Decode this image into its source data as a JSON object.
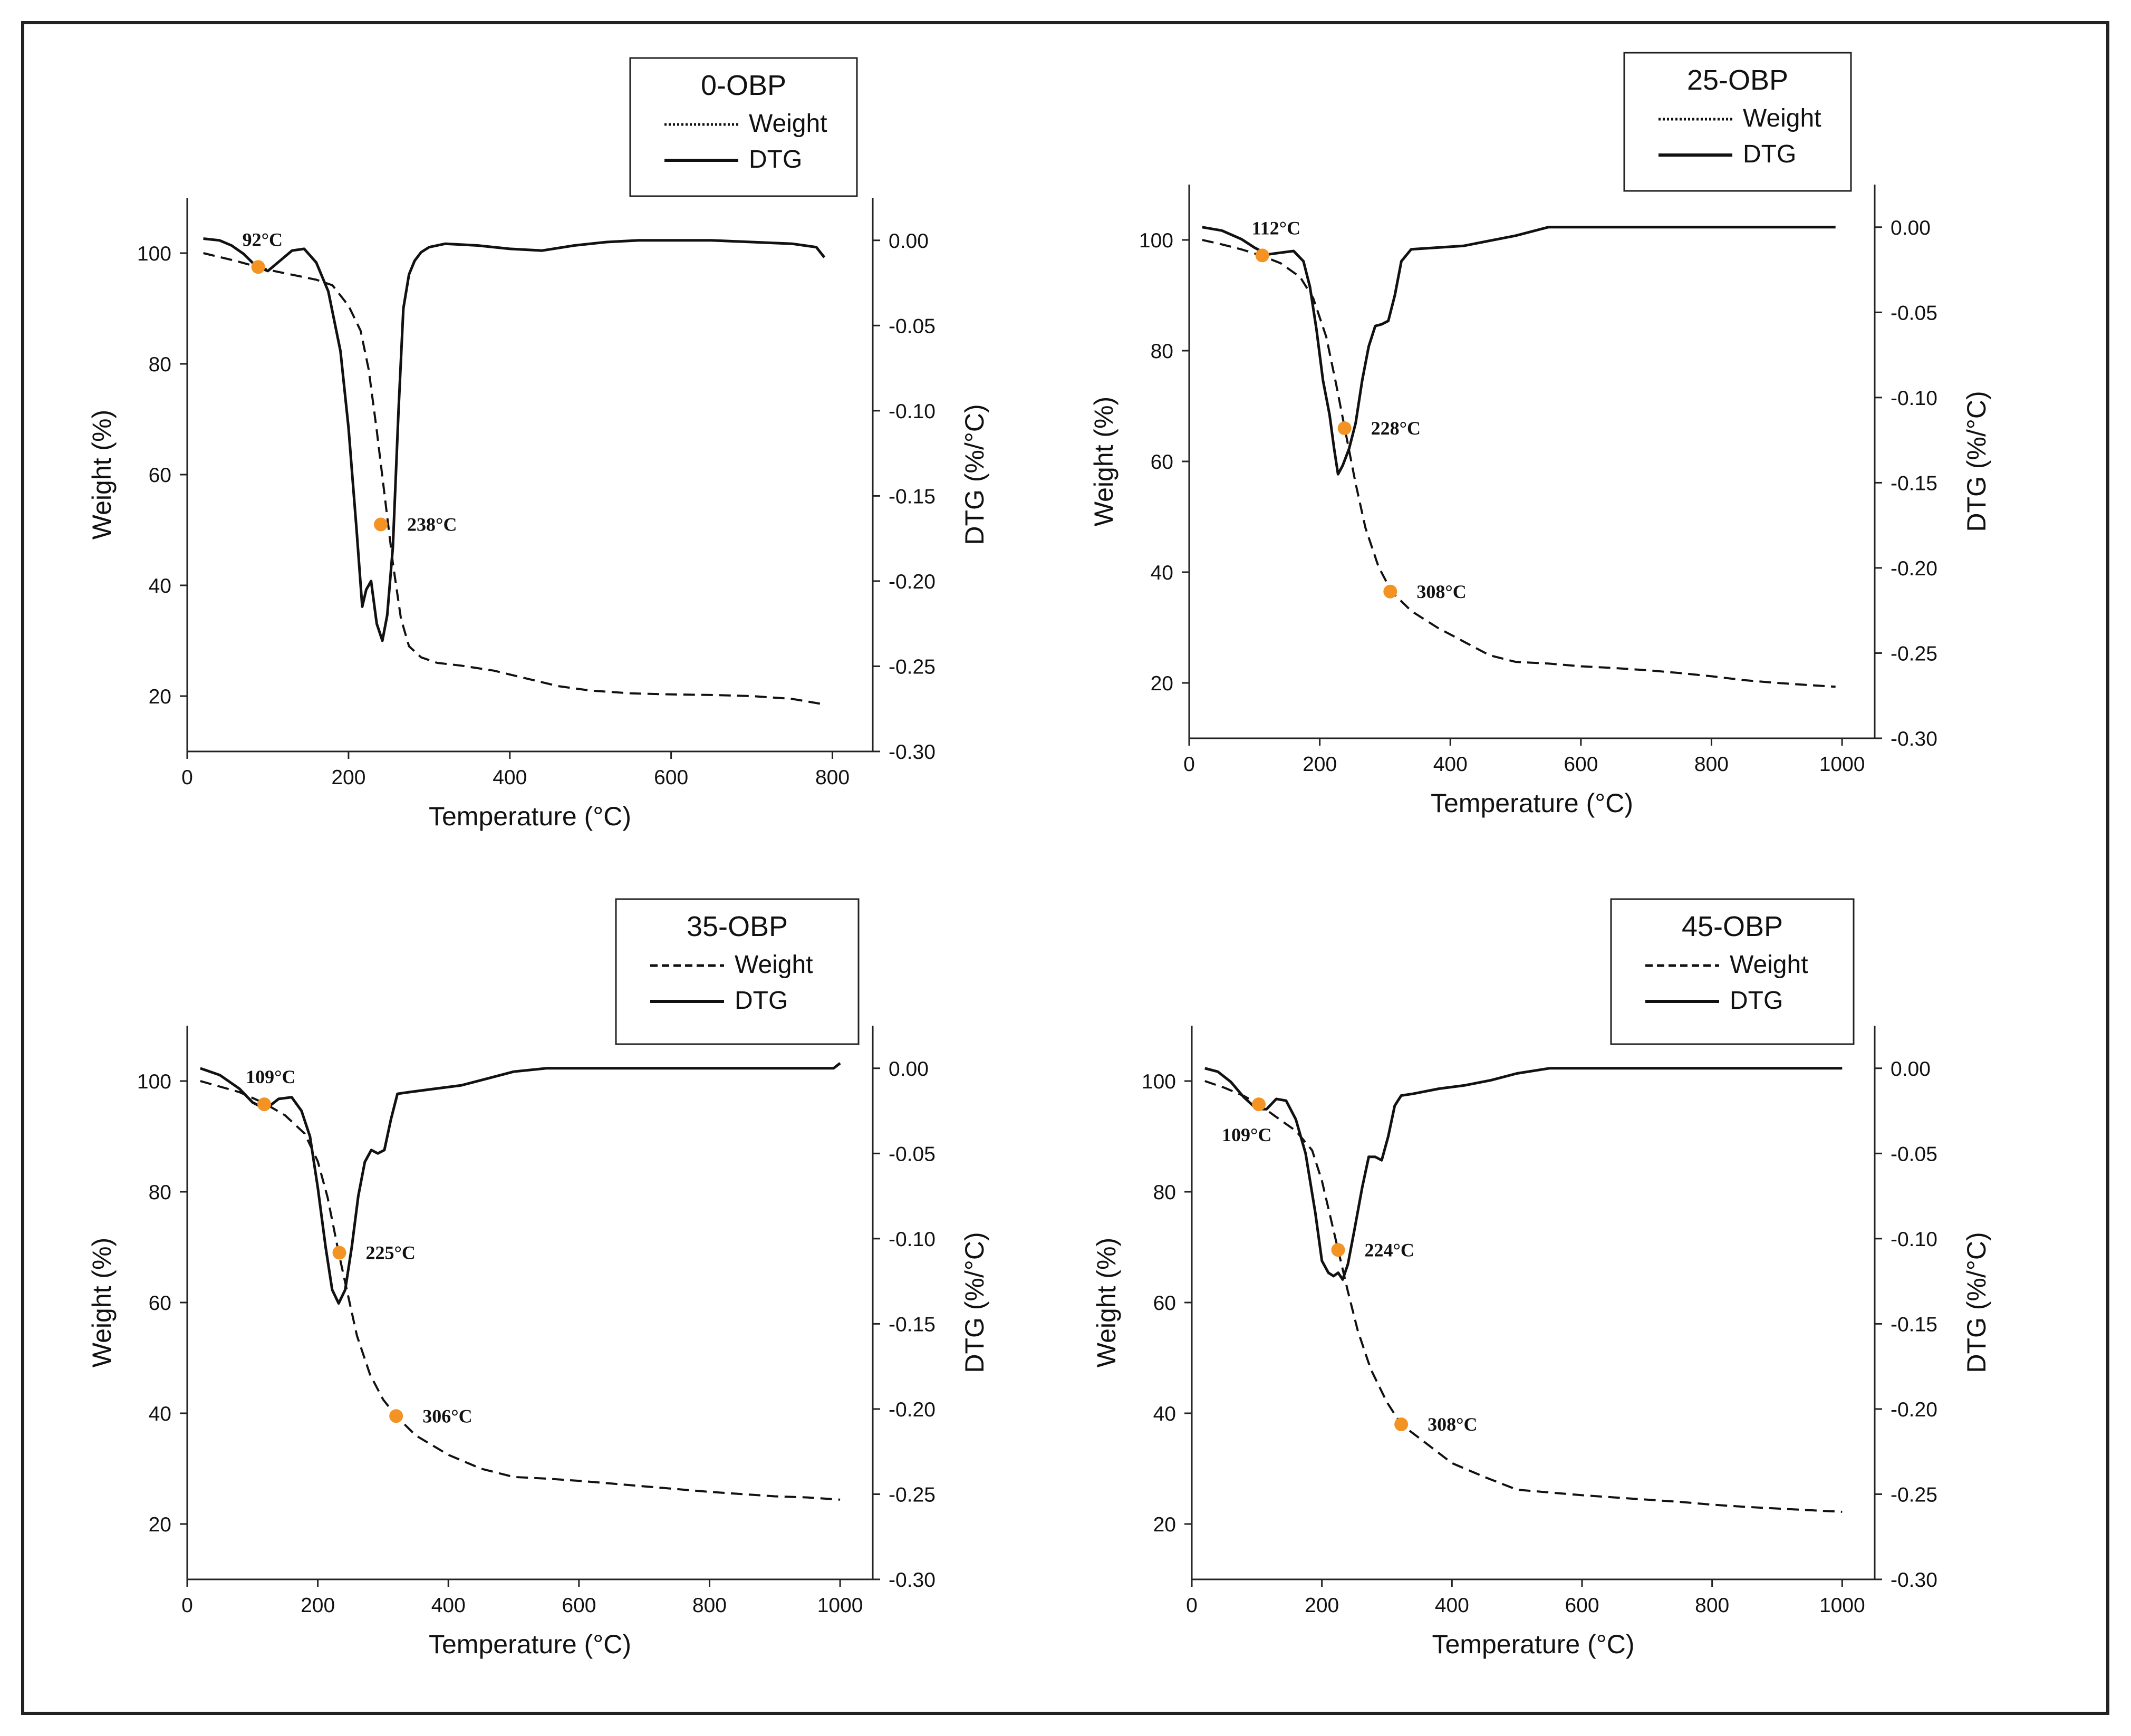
{
  "chart_data": [
    {
      "type": "line",
      "title": "0-OBP",
      "xlabel": "Temperature (°C)",
      "ylabel": "Weight (%)",
      "y2label": "DTG (%/°C)",
      "xlim": [
        0,
        850
      ],
      "xticks": [
        0,
        200,
        400,
        600,
        800
      ],
      "ylim": [
        10,
        110
      ],
      "yticks": [
        20,
        40,
        60,
        80,
        100
      ],
      "y2lim": [
        -0.3,
        0.025
      ],
      "y2ticks": [
        0.0,
        -0.05,
        -0.1,
        -0.15,
        -0.2,
        -0.25,
        -0.3
      ],
      "y2tick_labels": [
        "0.00",
        "-0.05",
        "-0.10",
        "-0.15",
        "-0.20",
        "-0.25",
        "-0.30"
      ],
      "legend_position": "top-right",
      "series": [
        {
          "name": "Weight",
          "axis": "left",
          "style": "dashed",
          "x": [
            20,
            40,
            60,
            80,
            100,
            120,
            140,
            160,
            180,
            200,
            215,
            225,
            235,
            245,
            255,
            265,
            275,
            290,
            310,
            340,
            380,
            420,
            460,
            500,
            550,
            600,
            650,
            700,
            750,
            790
          ],
          "y": [
            100,
            99.3,
            98.6,
            97.8,
            97,
            96.4,
            95.8,
            95.2,
            94.2,
            90.5,
            86,
            79,
            68,
            56,
            44,
            34,
            29,
            27,
            26,
            25.5,
            24.6,
            23.2,
            21.8,
            21,
            20.5,
            20.3,
            20.2,
            20,
            19.5,
            18.5
          ]
        },
        {
          "name": "DTG",
          "axis": "right",
          "style": "solid",
          "x": [
            20,
            40,
            55,
            70,
            85,
            100,
            115,
            130,
            145,
            160,
            175,
            190,
            200,
            210,
            217,
            222,
            228,
            235,
            242,
            248,
            255,
            262,
            268,
            275,
            282,
            290,
            300,
            320,
            360,
            400,
            440,
            480,
            520,
            560,
            600,
            650,
            700,
            750,
            780,
            790
          ],
          "y": [
            0.001,
            0.0,
            -0.003,
            -0.008,
            -0.015,
            -0.018,
            -0.012,
            -0.006,
            -0.005,
            -0.013,
            -0.03,
            -0.065,
            -0.11,
            -0.17,
            -0.215,
            -0.205,
            -0.2,
            -0.225,
            -0.235,
            -0.22,
            -0.18,
            -0.1,
            -0.04,
            -0.02,
            -0.012,
            -0.007,
            -0.004,
            -0.002,
            -0.003,
            -0.005,
            -0.006,
            -0.003,
            -0.001,
            0.0,
            0.0,
            0.0,
            -0.001,
            -0.002,
            -0.004,
            -0.01
          ]
        }
      ],
      "markers": [
        {
          "x": 88,
          "y": 97.5,
          "label": "92°C"
        },
        {
          "x": 240,
          "y": 51,
          "label": "238°C"
        }
      ]
    },
    {
      "type": "line",
      "title": "25-OBP",
      "xlabel": "Temperature (°C)",
      "ylabel": "Weight (%)",
      "y2label": "DTG (%/°C)",
      "xlim": [
        0,
        1050
      ],
      "xticks": [
        0,
        200,
        400,
        600,
        800,
        1000
      ],
      "ylim": [
        10,
        110
      ],
      "yticks": [
        20,
        40,
        60,
        80,
        100
      ],
      "y2lim": [
        -0.3,
        0.025
      ],
      "y2ticks": [
        0.0,
        -0.05,
        -0.1,
        -0.15,
        -0.2,
        -0.25,
        -0.3
      ],
      "y2tick_labels": [
        "0.00",
        "-0.05",
        "-0.10",
        "-0.15",
        "-0.20",
        "-0.25",
        "-0.30"
      ],
      "legend_position": "top-right",
      "series": [
        {
          "name": "Weight",
          "axis": "left",
          "style": "dashed",
          "x": [
            20,
            50,
            80,
            110,
            140,
            170,
            190,
            210,
            225,
            240,
            255,
            270,
            290,
            310,
            340,
            380,
            420,
            460,
            500,
            550,
            600,
            650,
            700,
            750,
            800,
            850,
            900,
            950,
            990
          ],
          "y": [
            100,
            99.2,
            98.3,
            97.2,
            95.8,
            93.3,
            89.5,
            82.5,
            74,
            65,
            56,
            48,
            41,
            36.5,
            33,
            30,
            27.5,
            25,
            23.8,
            23.5,
            23,
            22.7,
            22.3,
            21.8,
            21.2,
            20.5,
            20,
            19.6,
            19.3
          ]
        },
        {
          "name": "DTG",
          "axis": "right",
          "style": "solid",
          "x": [
            20,
            50,
            80,
            100,
            120,
            140,
            160,
            175,
            185,
            195,
            205,
            215,
            222,
            228,
            235,
            245,
            255,
            265,
            275,
            285,
            295,
            305,
            315,
            325,
            340,
            380,
            420,
            460,
            500,
            550,
            600,
            650,
            700,
            750,
            800,
            850,
            900,
            950,
            990
          ],
          "y": [
            0.0,
            -0.002,
            -0.007,
            -0.012,
            -0.016,
            -0.015,
            -0.014,
            -0.02,
            -0.035,
            -0.06,
            -0.09,
            -0.11,
            -0.13,
            -0.145,
            -0.14,
            -0.13,
            -0.115,
            -0.09,
            -0.07,
            -0.058,
            -0.057,
            -0.055,
            -0.04,
            -0.02,
            -0.013,
            -0.012,
            -0.011,
            -0.008,
            -0.005,
            0.0,
            0.0,
            0.0,
            0.0,
            0.0,
            0.0,
            0.0,
            0.0,
            0.0,
            0.0
          ]
        }
      ],
      "markers": [
        {
          "x": 112,
          "y": 97.2,
          "label": "112°C"
        },
        {
          "x": 238,
          "y": 66,
          "label": "228°C"
        },
        {
          "x": 308,
          "y": 36.5,
          "label": "308°C"
        }
      ]
    },
    {
      "type": "line",
      "title": "35-OBP",
      "xlabel": "Temperature (°C)",
      "ylabel": "Weight (%)",
      "y2label": "DTG (%/°C)",
      "xlim": [
        0,
        1050
      ],
      "xticks": [
        0,
        200,
        400,
        600,
        800,
        1000
      ],
      "ylim": [
        10,
        110
      ],
      "yticks": [
        20,
        40,
        60,
        80,
        100
      ],
      "y2lim": [
        -0.3,
        0.025
      ],
      "y2ticks": [
        0.0,
        -0.05,
        -0.1,
        -0.15,
        -0.2,
        -0.25,
        -0.3
      ],
      "y2tick_labels": [
        "0.00",
        "-0.05",
        "-0.10",
        "-0.15",
        "-0.20",
        "-0.25",
        "-0.30"
      ],
      "legend_position": "top-right",
      "series": [
        {
          "name": "Weight",
          "axis": "left",
          "style": "dashed",
          "x": [
            20,
            50,
            80,
            118,
            150,
            180,
            200,
            215,
            232,
            245,
            260,
            280,
            300,
            320,
            350,
            400,
            450,
            500,
            550,
            600,
            650,
            700,
            750,
            800,
            850,
            900,
            950,
            1000
          ],
          "y": [
            100,
            99,
            98,
            96,
            93.8,
            90.5,
            85.5,
            79,
            69,
            62,
            54,
            47,
            42.5,
            39.5,
            36,
            32.5,
            30,
            28.5,
            28.2,
            27.8,
            27.3,
            26.8,
            26.3,
            25.8,
            25.4,
            25,
            24.8,
            24.4
          ]
        },
        {
          "name": "DTG",
          "axis": "right",
          "style": "solid",
          "x": [
            20,
            50,
            80,
            100,
            120,
            140,
            160,
            175,
            188,
            200,
            212,
            222,
            232,
            242,
            252,
            262,
            272,
            282,
            292,
            302,
            312,
            322,
            340,
            380,
            420,
            460,
            500,
            550,
            600,
            700,
            800,
            900,
            990,
            1000
          ],
          "y": [
            0.0,
            -0.004,
            -0.012,
            -0.02,
            -0.024,
            -0.018,
            -0.017,
            -0.025,
            -0.04,
            -0.07,
            -0.105,
            -0.13,
            -0.138,
            -0.13,
            -0.105,
            -0.075,
            -0.055,
            -0.048,
            -0.05,
            -0.048,
            -0.03,
            -0.015,
            -0.014,
            -0.012,
            -0.01,
            -0.006,
            -0.002,
            0.0,
            0.0,
            0.0,
            0.0,
            0.0,
            0.0,
            0.003
          ]
        }
      ],
      "markers": [
        {
          "x": 118,
          "y": 95.8,
          "label": "109°C"
        },
        {
          "x": 233,
          "y": 69,
          "label": "225°C"
        },
        {
          "x": 320,
          "y": 39.5,
          "label": "306°C"
        }
      ]
    },
    {
      "type": "line",
      "title": "45-OBP",
      "xlabel": "Temperature (°C)",
      "ylabel": "Weight (%)",
      "y2label": "DTG (%/°C)",
      "xlim": [
        0,
        1050
      ],
      "xticks": [
        0,
        200,
        400,
        600,
        800,
        1000
      ],
      "ylim": [
        10,
        110
      ],
      "yticks": [
        20,
        40,
        60,
        80,
        100
      ],
      "y2lim": [
        -0.3,
        0.025
      ],
      "y2ticks": [
        0.0,
        -0.05,
        -0.1,
        -0.15,
        -0.2,
        -0.25,
        -0.3
      ],
      "y2tick_labels": [
        "0.00",
        "-0.05",
        "-0.10",
        "-0.15",
        "-0.20",
        "-0.25",
        "-0.30"
      ],
      "legend_position": "top-right",
      "series": [
        {
          "name": "Weight",
          "axis": "left",
          "style": "dashed",
          "x": [
            20,
            50,
            80,
            103,
            130,
            160,
            185,
            200,
            212,
            225,
            240,
            255,
            275,
            300,
            322,
            350,
            400,
            450,
            500,
            550,
            600,
            650,
            700,
            750,
            800,
            850,
            900,
            950,
            1000
          ],
          "y": [
            100,
            98.8,
            97.3,
            95.8,
            93.5,
            91,
            87.5,
            82,
            76,
            69.5,
            62,
            55,
            48,
            42,
            38,
            35.5,
            31,
            28.5,
            26.2,
            25.7,
            25.2,
            24.8,
            24.4,
            24,
            23.5,
            23.1,
            22.8,
            22.5,
            22.2
          ]
        },
        {
          "name": "DTG",
          "axis": "right",
          "style": "solid",
          "x": [
            20,
            40,
            60,
            80,
            100,
            115,
            130,
            145,
            160,
            175,
            190,
            200,
            210,
            218,
            225,
            232,
            240,
            250,
            262,
            272,
            282,
            292,
            302,
            312,
            322,
            340,
            380,
            420,
            460,
            500,
            550,
            600,
            700,
            800,
            900,
            1000
          ],
          "y": [
            0.0,
            -0.002,
            -0.008,
            -0.017,
            -0.024,
            -0.024,
            -0.018,
            -0.019,
            -0.03,
            -0.05,
            -0.085,
            -0.113,
            -0.12,
            -0.122,
            -0.12,
            -0.124,
            -0.115,
            -0.095,
            -0.07,
            -0.052,
            -0.052,
            -0.054,
            -0.04,
            -0.022,
            -0.016,
            -0.015,
            -0.012,
            -0.01,
            -0.007,
            -0.003,
            0.0,
            0.0,
            0.0,
            0.0,
            0.0,
            0.0
          ]
        }
      ],
      "markers": [
        {
          "x": 103,
          "y": 95.8,
          "label": "109°C"
        },
        {
          "x": 225,
          "y": 69.5,
          "label": "224°C"
        },
        {
          "x": 322,
          "y": 38,
          "label": "308°C"
        }
      ]
    }
  ],
  "colors": {
    "line": "#111111",
    "marker": "#f39323",
    "axis": "#222222"
  }
}
